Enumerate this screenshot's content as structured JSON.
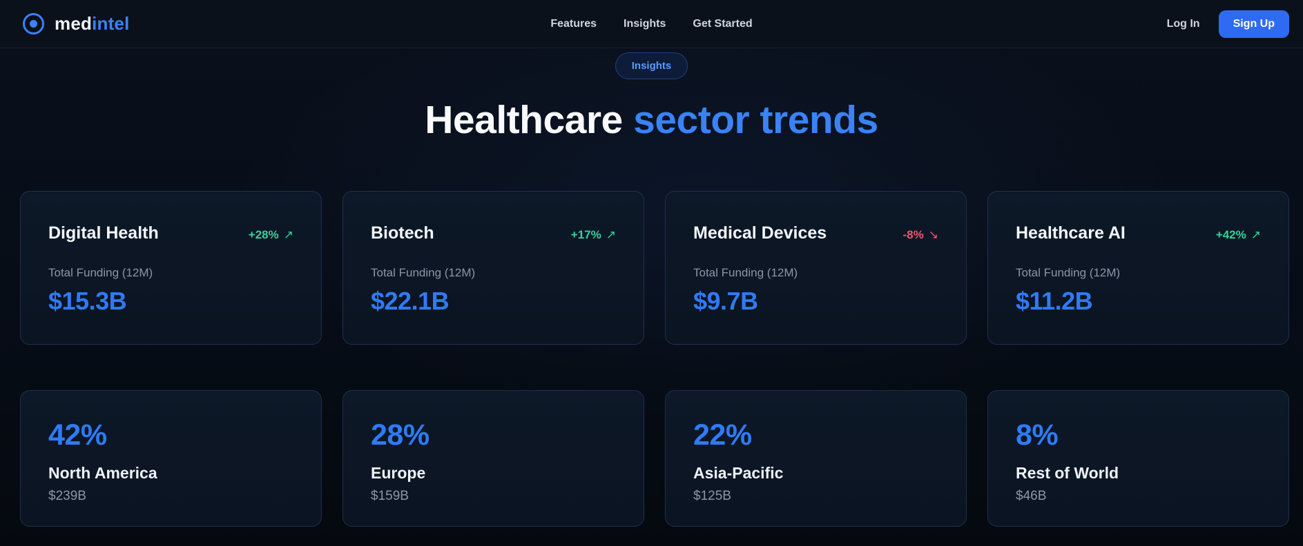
{
  "brand": {
    "name_primary": "med",
    "name_secondary": "intel"
  },
  "nav": {
    "links": [
      {
        "label": "Features"
      },
      {
        "label": "Insights"
      },
      {
        "label": "Get Started"
      }
    ],
    "login_label": "Log In",
    "signup_label": "Sign Up"
  },
  "hero": {
    "badge": "Insights",
    "title_white": "Healthcare",
    "title_blue": "sector trends"
  },
  "sector_cards": [
    {
      "name": "Digital Health",
      "change": "+28%",
      "direction": "up",
      "arrow": "↗",
      "metric_label": "Total Funding (12M)",
      "value": "$15.3B"
    },
    {
      "name": "Biotech",
      "change": "+17%",
      "direction": "up",
      "arrow": "↗",
      "metric_label": "Total Funding (12M)",
      "value": "$22.1B"
    },
    {
      "name": "Medical Devices",
      "change": "-8%",
      "direction": "down",
      "arrow": "↘",
      "metric_label": "Total Funding (12M)",
      "value": "$9.7B"
    },
    {
      "name": "Healthcare AI",
      "change": "+42%",
      "direction": "up",
      "arrow": "↗",
      "metric_label": "Total Funding (12M)",
      "value": "$11.2B"
    }
  ],
  "region_cards": [
    {
      "percent": "42%",
      "region": "North America",
      "amount": "$239B"
    },
    {
      "percent": "28%",
      "region": "Europe",
      "amount": "$159B"
    },
    {
      "percent": "22%",
      "region": "Asia-Pacific",
      "amount": "$125B"
    },
    {
      "percent": "8%",
      "region": "Rest of World",
      "amount": "$46B"
    }
  ],
  "colors": {
    "accent_blue": "#3b82f6",
    "value_blue": "#2f7bf6",
    "positive_green": "#34d399",
    "negative_red": "#f4536e",
    "signup_button_blue": "#2e6bf2"
  }
}
